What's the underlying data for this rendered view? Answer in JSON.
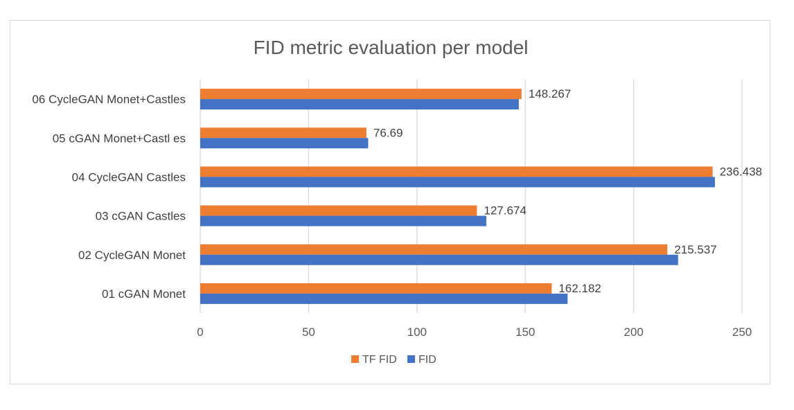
{
  "chart_data": {
    "type": "bar",
    "orientation": "horizontal",
    "title": "FID metric evaluation per model",
    "xlabel": "",
    "ylabel": "",
    "categories": [
      "06 CycleGAN Monet+Castles",
      "05 cGAN Monet+Castl es",
      "04 CycleGAN Castles",
      "03 cGAN Castles",
      "02 CycleGAN Monet",
      "01 cGAN Monet"
    ],
    "series": [
      {
        "name": "TF FID",
        "color": "#ED7D31",
        "values": [
          148.267,
          76.69,
          236.438,
          127.674,
          215.537,
          162.182
        ]
      },
      {
        "name": "FID",
        "color": "#4472C4",
        "values": [
          147,
          77.5,
          237.5,
          132,
          220.5,
          169.5
        ]
      }
    ],
    "data_labels": [
      "148.267",
      "76.69",
      "236.438",
      "127.674",
      "215.537",
      "162.182"
    ],
    "xlim": [
      0,
      250
    ],
    "xticks": [
      0,
      50,
      100,
      150,
      200,
      250
    ],
    "grid": "vertical",
    "legend_position": "bottom"
  }
}
